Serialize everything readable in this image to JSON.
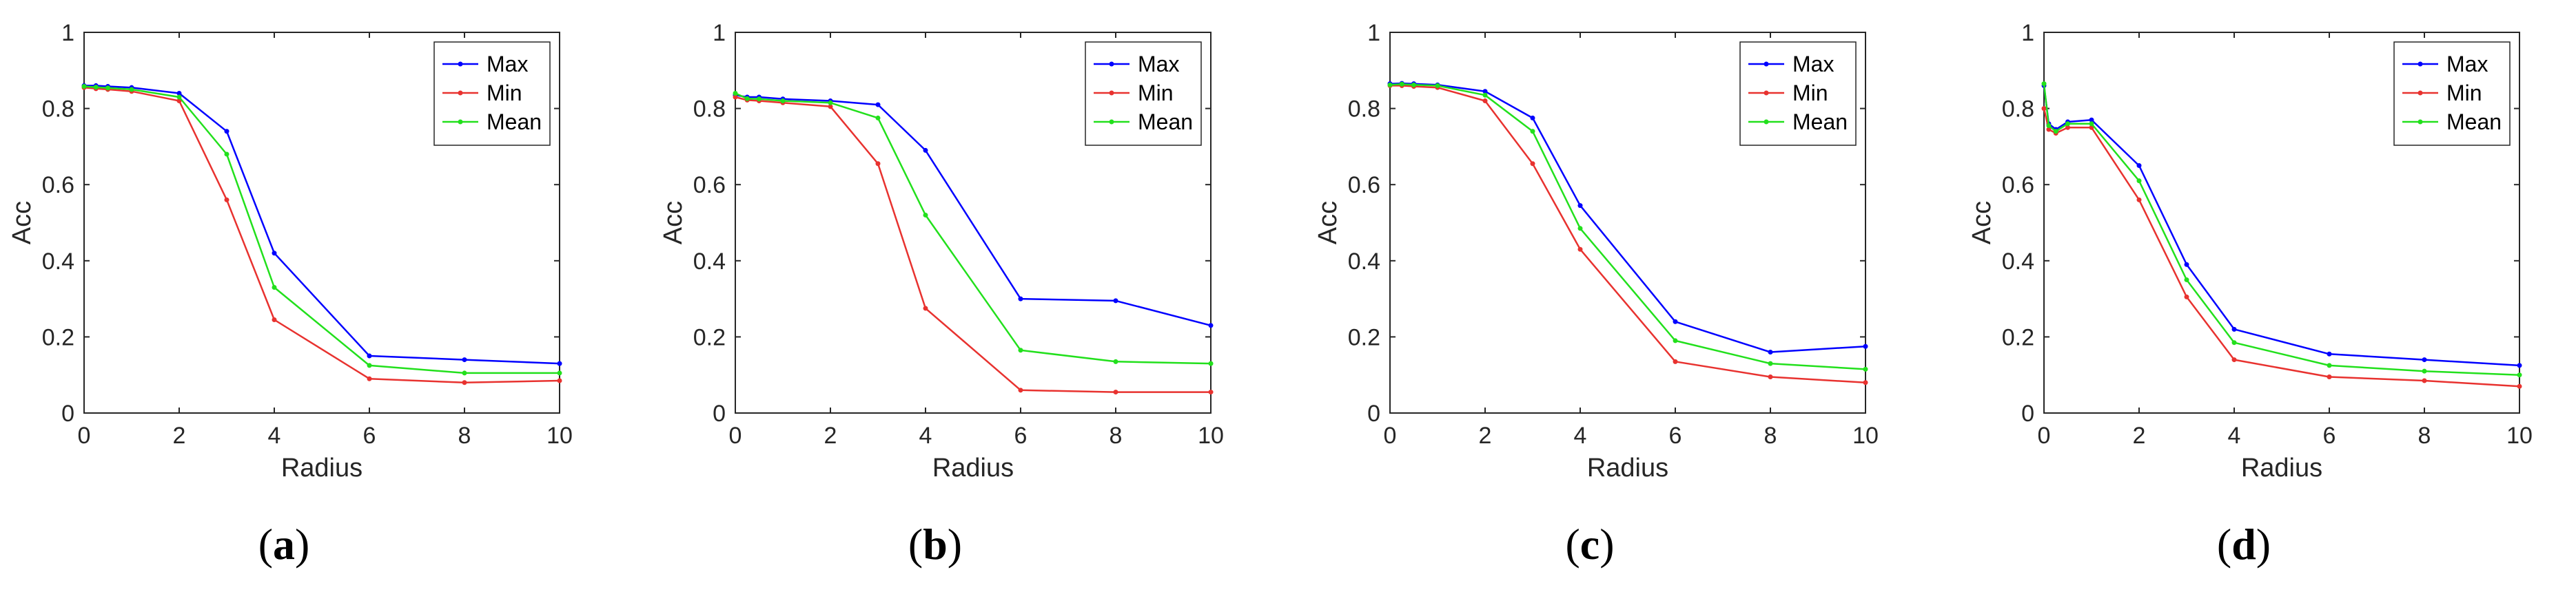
{
  "colors": {
    "Max": "#0000ff",
    "Min": "#e8322f",
    "Mean": "#22e01c",
    "axis": "#262626"
  },
  "chart_data": [
    {
      "type": "line",
      "panel_label": "a",
      "xlabel": "Radius",
      "ylabel": "Acc",
      "xlim": [
        0,
        10
      ],
      "ylim": [
        0,
        1
      ],
      "xticks": [
        "0",
        "2",
        "4",
        "6",
        "8",
        "10"
      ],
      "yticks": [
        "0",
        "0.2",
        "0.4",
        "0.6",
        "0.8",
        "1"
      ],
      "legend_position": "top-right",
      "grid": false,
      "series": [
        {
          "name": "Max",
          "x": [
            0,
            0.25,
            0.5,
            1,
            2,
            3,
            4,
            6,
            8,
            10
          ],
          "y": [
            0.86,
            0.86,
            0.858,
            0.855,
            0.84,
            0.74,
            0.42,
            0.15,
            0.14,
            0.13
          ]
        },
        {
          "name": "Min",
          "x": [
            0,
            0.25,
            0.5,
            1,
            2,
            3,
            4,
            6,
            8,
            10
          ],
          "y": [
            0.855,
            0.852,
            0.85,
            0.845,
            0.82,
            0.56,
            0.245,
            0.09,
            0.08,
            0.085
          ]
        },
        {
          "name": "Mean",
          "x": [
            0,
            0.25,
            0.5,
            1,
            2,
            3,
            4,
            6,
            8,
            10
          ],
          "y": [
            0.858,
            0.856,
            0.854,
            0.85,
            0.83,
            0.68,
            0.33,
            0.125,
            0.105,
            0.105
          ]
        }
      ]
    },
    {
      "type": "line",
      "panel_label": "b",
      "xlabel": "Radius",
      "ylabel": "Acc",
      "xlim": [
        0,
        10
      ],
      "ylim": [
        0,
        1
      ],
      "xticks": [
        "0",
        "2",
        "4",
        "6",
        "8",
        "10"
      ],
      "yticks": [
        "0",
        "0.2",
        "0.4",
        "0.6",
        "0.8",
        "1"
      ],
      "legend_position": "top-right",
      "grid": false,
      "series": [
        {
          "name": "Max",
          "x": [
            0,
            0.25,
            0.5,
            1,
            2,
            3,
            4,
            6,
            8,
            10
          ],
          "y": [
            0.835,
            0.83,
            0.83,
            0.825,
            0.82,
            0.81,
            0.69,
            0.3,
            0.295,
            0.23
          ]
        },
        {
          "name": "Min",
          "x": [
            0,
            0.25,
            0.5,
            1,
            2,
            3,
            4,
            6,
            8,
            10
          ],
          "y": [
            0.83,
            0.822,
            0.82,
            0.815,
            0.805,
            0.655,
            0.275,
            0.06,
            0.055,
            0.055
          ]
        },
        {
          "name": "Mean",
          "x": [
            0,
            0.25,
            0.5,
            1,
            2,
            3,
            4,
            6,
            8,
            10
          ],
          "y": [
            0.84,
            0.826,
            0.825,
            0.82,
            0.815,
            0.775,
            0.52,
            0.165,
            0.135,
            0.13
          ]
        }
      ]
    },
    {
      "type": "line",
      "panel_label": "c",
      "xlabel": "Radius",
      "ylabel": "Acc",
      "xlim": [
        0,
        10
      ],
      "ylim": [
        0,
        1
      ],
      "xticks": [
        "0",
        "2",
        "4",
        "6",
        "8",
        "10"
      ],
      "yticks": [
        "0",
        "0.2",
        "0.4",
        "0.6",
        "0.8",
        "1"
      ],
      "legend_position": "top-right",
      "grid": false,
      "series": [
        {
          "name": "Max",
          "x": [
            0,
            0.25,
            0.5,
            1,
            2,
            3,
            4,
            6,
            8,
            10
          ],
          "y": [
            0.865,
            0.866,
            0.865,
            0.862,
            0.845,
            0.775,
            0.545,
            0.24,
            0.16,
            0.175
          ]
        },
        {
          "name": "Min",
          "x": [
            0,
            0.25,
            0.5,
            1,
            2,
            3,
            4,
            6,
            8,
            10
          ],
          "y": [
            0.86,
            0.86,
            0.858,
            0.855,
            0.82,
            0.655,
            0.43,
            0.135,
            0.095,
            0.08
          ]
        },
        {
          "name": "Mean",
          "x": [
            0,
            0.25,
            0.5,
            1,
            2,
            3,
            4,
            6,
            8,
            10
          ],
          "y": [
            0.862,
            0.864,
            0.862,
            0.86,
            0.835,
            0.74,
            0.485,
            0.19,
            0.13,
            0.115
          ]
        }
      ]
    },
    {
      "type": "line",
      "panel_label": "d",
      "xlabel": "Radius",
      "ylabel": "Acc",
      "xlim": [
        0,
        10
      ],
      "ylim": [
        0,
        1
      ],
      "xticks": [
        "0",
        "2",
        "4",
        "6",
        "8",
        "10"
      ],
      "yticks": [
        "0",
        "0.2",
        "0.4",
        "0.6",
        "0.8",
        "1"
      ],
      "legend_position": "top-right",
      "grid": false,
      "series": [
        {
          "name": "Max",
          "x": [
            0,
            0.1,
            0.25,
            0.5,
            1,
            2,
            3,
            4,
            6,
            8,
            10
          ],
          "y": [
            0.86,
            0.76,
            0.745,
            0.765,
            0.77,
            0.65,
            0.39,
            0.22,
            0.155,
            0.14,
            0.125
          ]
        },
        {
          "name": "Min",
          "x": [
            0,
            0.1,
            0.25,
            0.5,
            1,
            2,
            3,
            4,
            6,
            8,
            10
          ],
          "y": [
            0.8,
            0.745,
            0.735,
            0.75,
            0.75,
            0.56,
            0.305,
            0.14,
            0.095,
            0.085,
            0.07
          ]
        },
        {
          "name": "Mean",
          "x": [
            0,
            0.1,
            0.25,
            0.5,
            1,
            2,
            3,
            4,
            6,
            8,
            10
          ],
          "y": [
            0.865,
            0.755,
            0.74,
            0.76,
            0.76,
            0.61,
            0.35,
            0.185,
            0.125,
            0.11,
            0.1
          ]
        }
      ]
    }
  ]
}
